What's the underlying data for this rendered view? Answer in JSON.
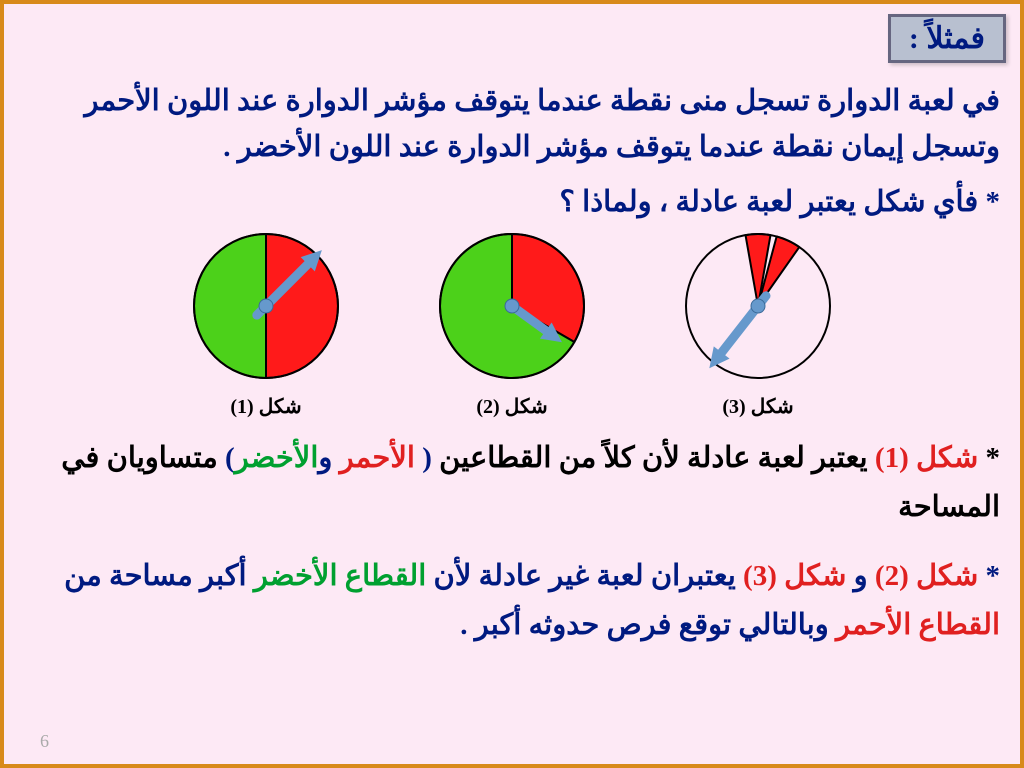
{
  "header": {
    "label": "فمثلاً :"
  },
  "intro": "في لعبة الدوارة تسجل منى نقطة عندما يتوقف مؤشر الدوارة عند اللون الأحمر وتسجل إيمان نقطة عندما يتوقف مؤشر الدوارة عند اللون الأخضر .",
  "question": "* فأي شكل يعتبر لعبة عادلة ، ولماذا ؟",
  "spinners": {
    "radius": 72,
    "stroke": "#000000",
    "stroke_width": 2,
    "pin_color": "#6699cc",
    "arrow_color": "#6699cc",
    "green": "#4cd11a",
    "red": "#ff1a1a",
    "items": [
      {
        "id": "shape1",
        "label": "شكل (1)",
        "sectors": [
          {
            "start": -90,
            "end": 90,
            "fill_key": "red"
          },
          {
            "start": 90,
            "end": 270,
            "fill_key": "green"
          }
        ],
        "arrow_angle": -45
      },
      {
        "id": "shape2",
        "label": "شكل (2)",
        "sectors": [
          {
            "start": -90,
            "end": 30,
            "fill_key": "red"
          },
          {
            "start": 30,
            "end": 270,
            "fill_key": "green"
          }
        ],
        "arrow_angle": 36,
        "arrow_anchor": "center"
      },
      {
        "id": "shape3",
        "label": "شكل (3)",
        "sectors": [
          {
            "start": -90,
            "end": 270,
            "fill_key": "green"
          },
          {
            "start": -100,
            "end": -80,
            "fill_key": "red"
          },
          {
            "start": -75,
            "end": -55,
            "fill_key": "red"
          }
        ],
        "arrow_angle": 128
      }
    ]
  },
  "explain1": {
    "parts": [
      {
        "text": "* ",
        "cls": "c-black"
      },
      {
        "text": "شكل (1)",
        "cls": "c-red"
      },
      {
        "text": " يعتبر لعبة عادلة لأن كلاً من القطاعين ",
        "cls": "c-black"
      },
      {
        "text": "(",
        "cls": "c-navy"
      },
      {
        "text": " الأحمر ",
        "cls": "c-red"
      },
      {
        "text": "و",
        "cls": "c-navy"
      },
      {
        "text": "الأخضر",
        "cls": "c-green"
      },
      {
        "text": ")",
        "cls": "c-navy"
      },
      {
        "text": " متساويان في المساحة",
        "cls": "c-black"
      }
    ]
  },
  "explain2": {
    "parts": [
      {
        "text": "* ",
        "cls": "c-navy"
      },
      {
        "text": "شكل (2)",
        "cls": "c-red"
      },
      {
        "text": " و ",
        "cls": "c-navy"
      },
      {
        "text": "شكل (3)",
        "cls": "c-red"
      },
      {
        "text": " يعتبران لعبة غير عادلة لأن ",
        "cls": "c-navy"
      },
      {
        "text": "القطاع الأخضر",
        "cls": "c-green"
      },
      {
        "text": " أكبر مساحة من  ",
        "cls": "c-navy"
      },
      {
        "text": "القطاع الأحمر",
        "cls": "c-red"
      },
      {
        "text": " وبالتالي توقع فرص حدوثه أكبر .",
        "cls": "c-navy"
      }
    ]
  },
  "page_number": "6"
}
